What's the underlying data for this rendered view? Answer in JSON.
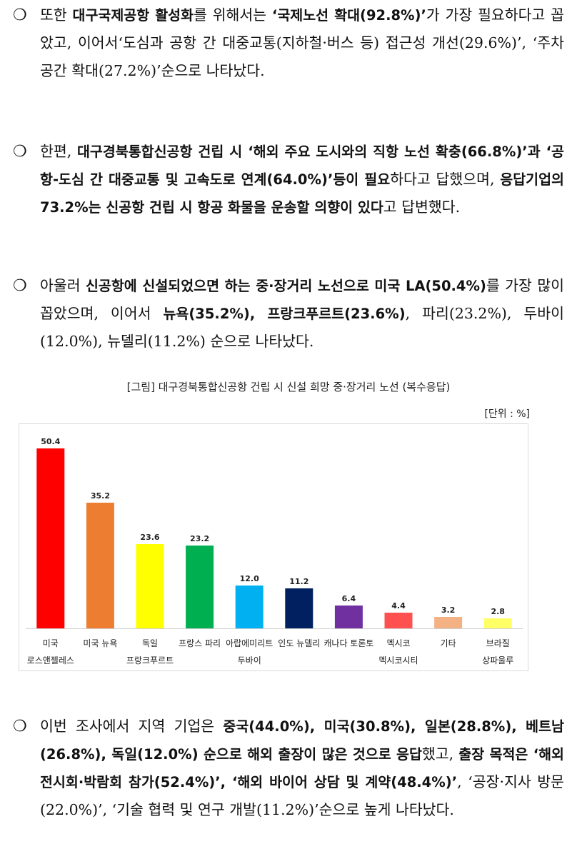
{
  "paragraphs": [
    {
      "bullet": "❍",
      "segments": [
        {
          "t": "또한 "
        },
        {
          "t": "대구국제공항 활성화",
          "b": true
        },
        {
          "t": "를 위해서는 "
        },
        {
          "t": "‘국제노선 확대(92.8%)’",
          "b": true
        },
        {
          "t": "가 가장 필요하다고 꼽았고, 이어서‘도심과 공항 간 대중교통(지하철·버스 등) 접근성 개선(29.6%)’, ‘주차 공간 확대(27.2%)’순으로 나타났다."
        }
      ]
    },
    {
      "bullet": "❍",
      "segments": [
        {
          "t": "한편, "
        },
        {
          "t": "대구경북통합신공항 건립 시 ‘해외 주요 도시와의 직항 노선 확충(66.8%)’과 ‘공항-도심 간 대중교통 및 고속도로 연계(64.0%)’등이 필요",
          "b": true
        },
        {
          "t": "하다고 답했으며, "
        },
        {
          "t": "응답기업의 73.2%는 신공항 건립 시 항공 화물을 운송할 의향이 있다",
          "b": true
        },
        {
          "t": "고 답변했다."
        }
      ]
    },
    {
      "bullet": "❍",
      "segments": [
        {
          "t": "아울러 "
        },
        {
          "t": "신공항에 신설되었으면 하는 중·장거리 노선으로 미국 LA(50.4%)",
          "b": true
        },
        {
          "t": "를 가장 많이 꼽았으며, 이어서 "
        },
        {
          "t": "뉴욕(35.2%), 프랑크푸르트(23.6%)",
          "b": true
        },
        {
          "t": ", 파리(23.2%), 두바이(12.0%), 뉴델리(11.2%) 순으로 나타났다."
        }
      ]
    },
    {
      "bullet": "❍",
      "segments": [
        {
          "t": "이번 조사에서 지역 기업은 "
        },
        {
          "t": "중국(44.0%), 미국(30.8%), 일본(28.8%), 베트남(26.8%), 독일(12.0%) 순으로 해외 출장이 많은 것으로 응답",
          "b": true
        },
        {
          "t": "했고, "
        },
        {
          "t": "출장 목적은 ‘해외 전시회·박람회 참가(52.4%)’, ‘해외 바이어 상담 및 계약(48.4%)’",
          "b": true
        },
        {
          "t": ", ‘공장·지사 방문(22.0%)’, ‘기술 협력 및 연구 개발(11.2%)’순으로 높게 나타났다."
        }
      ]
    }
  ],
  "figure": {
    "caption": "[그림] 대구경북통합신공항 건립 시 신설 희망 중·장거리 노선 (복수응답)",
    "unit": "[단위 : %]"
  },
  "chart_data": {
    "type": "bar",
    "categories": [
      [
        "미국",
        "로스앤젤레스"
      ],
      [
        "미국 뉴욕"
      ],
      [
        "독일",
        "프랑크푸르트"
      ],
      [
        "프랑스 파리"
      ],
      [
        "아랍에미리트",
        "두바이"
      ],
      [
        "인도 뉴델리"
      ],
      [
        "캐나다 토론토"
      ],
      [
        "멕시코",
        "멕시코시티"
      ],
      [
        "기타"
      ],
      [
        "브라질",
        "상파울루"
      ]
    ],
    "values": [
      50.4,
      35.2,
      23.6,
      23.2,
      12.0,
      11.2,
      6.4,
      4.4,
      3.2,
      2.8
    ],
    "value_labels": [
      "50.4",
      "35.2",
      "23.6",
      "23.2",
      "12.0",
      "11.2",
      "6.4",
      "4.4",
      "3.2",
      "2.8"
    ],
    "colors": [
      "#ff0000",
      "#ed7d31",
      "#ffff00",
      "#00b050",
      "#00b0f0",
      "#002060",
      "#7030a0",
      "#ff5050",
      "#f4b183",
      "#ffff66"
    ],
    "ylim": [
      0,
      60
    ],
    "grid": false,
    "legend": "none",
    "title": "",
    "xlabel": "",
    "ylabel": ""
  }
}
